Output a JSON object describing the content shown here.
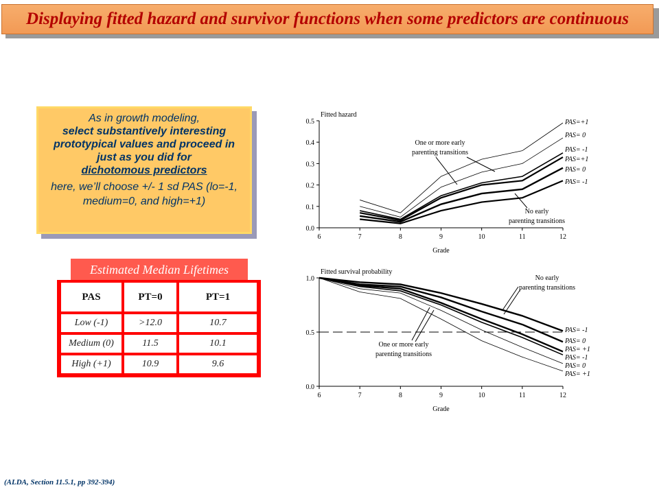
{
  "title": "Displaying fitted hazard and survivor functions when some predictors are continuous",
  "callout": {
    "line1": "As in growth modeling,",
    "line2a": "select substantively interesting",
    "line2b": "prototypical values and proceed in",
    "line2c": "just as you did for",
    "line2d": "dichotomous predictors",
    "line3": "here, we’ll choose +/- 1 sd PAS (lo=-1, medium=0, and high=+1)"
  },
  "table": {
    "caption": "Estimated Median Lifetimes",
    "headers": [
      "PAS",
      "PT=0",
      "PT=1"
    ],
    "rows": [
      [
        "Low (-1)",
        ">12.0",
        "10.7"
      ],
      [
        "Medium (0)",
        "11.5",
        "10.1"
      ],
      [
        "High (+1)",
        "10.9",
        "9.6"
      ]
    ]
  },
  "footer": "(ALDA, Section 11.5.1, pp 392-394)",
  "chart_data": [
    {
      "type": "line",
      "title": "Fitted hazard",
      "xlabel": "Grade",
      "ylabel": "",
      "xlim": [
        6,
        12
      ],
      "ylim": [
        0,
        0.5
      ],
      "xticks": [
        "6",
        "7",
        "8",
        "9",
        "10",
        "11",
        "12"
      ],
      "yticks": [
        "0.0",
        "0.1",
        "0.2",
        "0.3",
        "0.4",
        "0.5"
      ],
      "x": [
        7,
        8,
        9,
        10,
        11,
        12
      ],
      "series": [
        {
          "name": "PAS=+1",
          "group": "One or more early parenting transitions",
          "values": [
            0.13,
            0.07,
            0.24,
            0.32,
            0.36,
            0.49
          ],
          "width": 0.8
        },
        {
          "name": "PAS= 0",
          "group": "One or more early parenting transitions",
          "values": [
            0.1,
            0.05,
            0.19,
            0.26,
            0.3,
            0.42
          ],
          "width": 0.8
        },
        {
          "name": "PAS= -1",
          "group": "One or more early parenting transitions",
          "values": [
            0.08,
            0.04,
            0.15,
            0.21,
            0.24,
            0.35
          ],
          "width": 1.6
        },
        {
          "name": "PAS=+1",
          "group": "No early parenting transitions",
          "values": [
            0.07,
            0.035,
            0.14,
            0.2,
            0.22,
            0.33
          ],
          "width": 2.2
        },
        {
          "name": "PAS= 0",
          "group": "No early parenting transitions",
          "values": [
            0.055,
            0.028,
            0.11,
            0.16,
            0.18,
            0.28
          ],
          "width": 2.4
        },
        {
          "name": "PAS= -1",
          "group": "No early parenting transitions",
          "values": [
            0.04,
            0.02,
            0.08,
            0.12,
            0.14,
            0.22
          ],
          "width": 2.2
        }
      ],
      "annotations": [
        "One or more early parenting transitions",
        "No early parenting transitions"
      ],
      "labels": [
        "PAS=+1",
        "PAS= 0",
        "PAS= -1",
        "PAS=+1",
        "PAS= 0",
        "PAS= -1"
      ]
    },
    {
      "type": "line",
      "title": "Fitted survival probability",
      "xlabel": "Grade",
      "ylabel": "",
      "xlim": [
        6,
        12
      ],
      "ylim": [
        0,
        1
      ],
      "xticks": [
        "6",
        "7",
        "8",
        "9",
        "10",
        "11",
        "12"
      ],
      "yticks": [
        "0.0",
        "0.5",
        "1.0"
      ],
      "reference_line": 0.5,
      "x": [
        6,
        7,
        8,
        9,
        10,
        11,
        12
      ],
      "series": [
        {
          "name": "PAS= -1",
          "group": "No early parenting transitions",
          "values": [
            1.0,
            0.96,
            0.94,
            0.86,
            0.76,
            0.65,
            0.51
          ],
          "width": 2.4
        },
        {
          "name": "PAS= 0",
          "group": "No early parenting transitions",
          "values": [
            1.0,
            0.94,
            0.92,
            0.82,
            0.69,
            0.57,
            0.41
          ],
          "width": 2.4
        },
        {
          "name": "PAS= +1",
          "group": "No early parenting transitions",
          "values": [
            1.0,
            0.93,
            0.9,
            0.77,
            0.62,
            0.48,
            0.32
          ],
          "width": 2.4
        },
        {
          "name": "PAS= -1",
          "group": "One or more early parenting transitions",
          "values": [
            1.0,
            0.92,
            0.88,
            0.75,
            0.59,
            0.45,
            0.29
          ],
          "width": 1.6
        },
        {
          "name": "PAS= 0",
          "group": "One or more early parenting transitions",
          "values": [
            1.0,
            0.9,
            0.86,
            0.7,
            0.52,
            0.36,
            0.21
          ],
          "width": 0.8
        },
        {
          "name": "PAS= +1",
          "group": "One or more early parenting transitions",
          "values": [
            1.0,
            0.87,
            0.81,
            0.62,
            0.42,
            0.27,
            0.14
          ],
          "width": 0.8
        }
      ],
      "annotations": [
        "No early parenting transitions",
        "One or more early parenting transitions"
      ],
      "labels": [
        "PAS= -1",
        "PAS= 0",
        "PAS= +1",
        "PAS= -1",
        "PAS= 0",
        "PAS= +1"
      ]
    }
  ]
}
